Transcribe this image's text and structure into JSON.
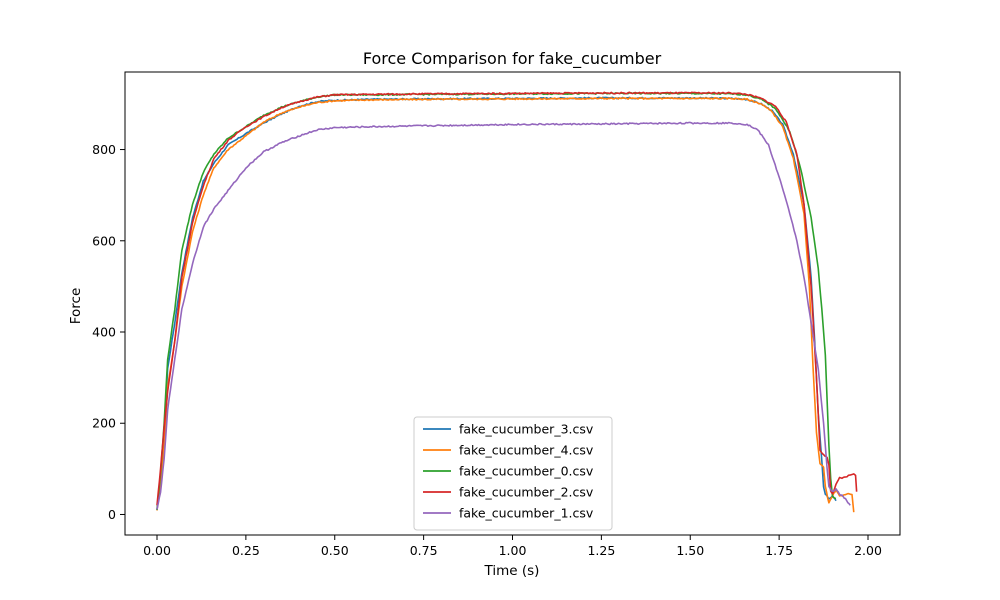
{
  "chart_data": {
    "type": "line",
    "title": "Force Comparison for fake_cucumber",
    "xlabel": "Time (s)",
    "ylabel": "Force",
    "xlim": [
      -0.09,
      2.09
    ],
    "ylim": [
      -45,
      970
    ],
    "xticks": [
      0.0,
      0.25,
      0.5,
      0.75,
      1.0,
      1.25,
      1.5,
      1.75,
      2.0
    ],
    "xtick_labels": [
      "0.00",
      "0.25",
      "0.50",
      "0.75",
      "1.00",
      "1.25",
      "1.50",
      "1.75",
      "2.00"
    ],
    "yticks": [
      0,
      200,
      400,
      600,
      800
    ],
    "ytick_labels": [
      "0",
      "200",
      "400",
      "600",
      "800"
    ],
    "grid": false,
    "legend_position": "bottom-center",
    "series": [
      {
        "name": "fake_cucumber_3.csv",
        "color": "#1f77b4",
        "points": [
          [
            0.0,
            10
          ],
          [
            0.01,
            80
          ],
          [
            0.02,
            170
          ],
          [
            0.03,
            320
          ],
          [
            0.05,
            420
          ],
          [
            0.07,
            530
          ],
          [
            0.1,
            650
          ],
          [
            0.13,
            730
          ],
          [
            0.16,
            770
          ],
          [
            0.2,
            810
          ],
          [
            0.25,
            835
          ],
          [
            0.3,
            858
          ],
          [
            0.35,
            878
          ],
          [
            0.4,
            895
          ],
          [
            0.45,
            905
          ],
          [
            0.5,
            908
          ],
          [
            0.6,
            910
          ],
          [
            0.75,
            911
          ],
          [
            1.0,
            912
          ],
          [
            1.25,
            913
          ],
          [
            1.5,
            913
          ],
          [
            1.62,
            912
          ],
          [
            1.66,
            910
          ],
          [
            1.7,
            900
          ],
          [
            1.73,
            885
          ],
          [
            1.76,
            855
          ],
          [
            1.79,
            790
          ],
          [
            1.82,
            680
          ],
          [
            1.84,
            520
          ],
          [
            1.85,
            380
          ],
          [
            1.86,
            220
          ],
          [
            1.87,
            120
          ],
          [
            1.875,
            60
          ],
          [
            1.88,
            45
          ],
          [
            1.89,
            35
          ],
          [
            1.9,
            40
          ],
          [
            1.91,
            30
          ]
        ]
      },
      {
        "name": "fake_cucumber_4.csv",
        "color": "#ff7f0e",
        "points": [
          [
            0.0,
            10
          ],
          [
            0.01,
            70
          ],
          [
            0.02,
            150
          ],
          [
            0.03,
            280
          ],
          [
            0.05,
            380
          ],
          [
            0.07,
            500
          ],
          [
            0.1,
            620
          ],
          [
            0.13,
            700
          ],
          [
            0.16,
            760
          ],
          [
            0.2,
            800
          ],
          [
            0.25,
            830
          ],
          [
            0.3,
            860
          ],
          [
            0.35,
            880
          ],
          [
            0.4,
            893
          ],
          [
            0.45,
            903
          ],
          [
            0.5,
            907
          ],
          [
            0.6,
            909
          ],
          [
            0.75,
            910
          ],
          [
            1.0,
            911
          ],
          [
            1.25,
            912
          ],
          [
            1.5,
            912
          ],
          [
            1.62,
            912
          ],
          [
            1.66,
            910
          ],
          [
            1.7,
            900
          ],
          [
            1.73,
            883
          ],
          [
            1.76,
            850
          ],
          [
            1.79,
            780
          ],
          [
            1.82,
            660
          ],
          [
            1.835,
            500
          ],
          [
            1.845,
            330
          ],
          [
            1.855,
            180
          ],
          [
            1.865,
            110
          ],
          [
            1.875,
            105
          ],
          [
            1.88,
            60
          ],
          [
            1.89,
            25
          ],
          [
            1.9,
            40
          ],
          [
            1.91,
            55
          ],
          [
            1.92,
            40
          ],
          [
            1.94,
            45
          ],
          [
            1.955,
            45
          ],
          [
            1.96,
            5
          ]
        ]
      },
      {
        "name": "fake_cucumber_0.csv",
        "color": "#2ca02c",
        "points": [
          [
            0.0,
            10
          ],
          [
            0.01,
            90
          ],
          [
            0.02,
            200
          ],
          [
            0.03,
            340
          ],
          [
            0.05,
            450
          ],
          [
            0.07,
            580
          ],
          [
            0.1,
            680
          ],
          [
            0.13,
            750
          ],
          [
            0.16,
            790
          ],
          [
            0.2,
            825
          ],
          [
            0.25,
            850
          ],
          [
            0.3,
            875
          ],
          [
            0.35,
            893
          ],
          [
            0.4,
            905
          ],
          [
            0.45,
            915
          ],
          [
            0.5,
            920
          ],
          [
            0.6,
            920
          ],
          [
            0.75,
            921
          ],
          [
            1.0,
            922
          ],
          [
            1.25,
            923
          ],
          [
            1.5,
            923
          ],
          [
            1.62,
            922
          ],
          [
            1.66,
            920
          ],
          [
            1.7,
            910
          ],
          [
            1.74,
            890
          ],
          [
            1.78,
            840
          ],
          [
            1.81,
            760
          ],
          [
            1.84,
            650
          ],
          [
            1.86,
            540
          ],
          [
            1.87,
            450
          ],
          [
            1.88,
            350
          ],
          [
            1.885,
            250
          ],
          [
            1.89,
            150
          ],
          [
            1.895,
            80
          ],
          [
            1.9,
            40
          ],
          [
            1.91,
            35
          ]
        ]
      },
      {
        "name": "fake_cucumber_2.csv",
        "color": "#d62728",
        "points": [
          [
            0.0,
            20
          ],
          [
            0.01,
            100
          ],
          [
            0.02,
            190
          ],
          [
            0.03,
            270
          ],
          [
            0.05,
            380
          ],
          [
            0.07,
            520
          ],
          [
            0.1,
            640
          ],
          [
            0.13,
            720
          ],
          [
            0.16,
            780
          ],
          [
            0.2,
            820
          ],
          [
            0.25,
            850
          ],
          [
            0.3,
            872
          ],
          [
            0.35,
            892
          ],
          [
            0.4,
            905
          ],
          [
            0.45,
            915
          ],
          [
            0.5,
            920
          ],
          [
            0.6,
            921
          ],
          [
            0.75,
            922
          ],
          [
            1.0,
            923
          ],
          [
            1.25,
            924
          ],
          [
            1.5,
            924
          ],
          [
            1.62,
            924
          ],
          [
            1.66,
            921
          ],
          [
            1.7,
            912
          ],
          [
            1.74,
            895
          ],
          [
            1.77,
            860
          ],
          [
            1.8,
            790
          ],
          [
            1.82,
            680
          ],
          [
            1.84,
            500
          ],
          [
            1.855,
            300
          ],
          [
            1.865,
            140
          ],
          [
            1.875,
            130
          ],
          [
            1.885,
            125
          ],
          [
            1.89,
            110
          ],
          [
            1.895,
            50
          ],
          [
            1.9,
            45
          ],
          [
            1.91,
            65
          ],
          [
            1.92,
            80
          ],
          [
            1.93,
            80
          ],
          [
            1.945,
            85
          ],
          [
            1.96,
            90
          ],
          [
            1.965,
            85
          ],
          [
            1.968,
            50
          ]
        ]
      },
      {
        "name": "fake_cucumber_1.csv",
        "color": "#9467bd",
        "points": [
          [
            0.0,
            10
          ],
          [
            0.01,
            50
          ],
          [
            0.02,
            120
          ],
          [
            0.03,
            230
          ],
          [
            0.05,
            340
          ],
          [
            0.07,
            450
          ],
          [
            0.1,
            550
          ],
          [
            0.13,
            630
          ],
          [
            0.16,
            670
          ],
          [
            0.2,
            710
          ],
          [
            0.25,
            760
          ],
          [
            0.3,
            795
          ],
          [
            0.35,
            815
          ],
          [
            0.4,
            830
          ],
          [
            0.45,
            843
          ],
          [
            0.5,
            848
          ],
          [
            0.6,
            850
          ],
          [
            0.75,
            852
          ],
          [
            1.0,
            855
          ],
          [
            1.25,
            856
          ],
          [
            1.5,
            858
          ],
          [
            1.62,
            858
          ],
          [
            1.66,
            855
          ],
          [
            1.69,
            843
          ],
          [
            1.72,
            810
          ],
          [
            1.75,
            740
          ],
          [
            1.78,
            660
          ],
          [
            1.8,
            600
          ],
          [
            1.82,
            520
          ],
          [
            1.84,
            420
          ],
          [
            1.86,
            320
          ],
          [
            1.875,
            200
          ],
          [
            1.885,
            100
          ],
          [
            1.89,
            60
          ],
          [
            1.9,
            50
          ],
          [
            1.91,
            55
          ],
          [
            1.92,
            45
          ],
          [
            1.93,
            40
          ],
          [
            1.94,
            30
          ],
          [
            1.95,
            20
          ]
        ]
      }
    ]
  }
}
